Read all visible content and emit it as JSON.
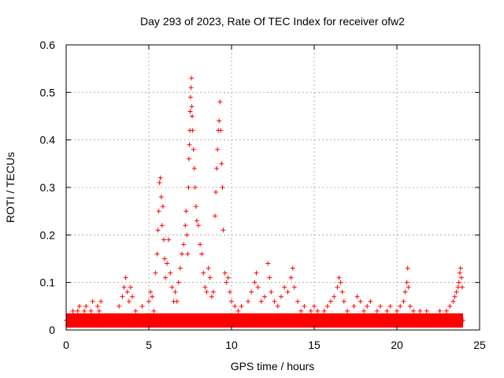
{
  "chart_data": {
    "type": "scatter",
    "title": "Day 293 of 2023, Rate Of TEC Index for receiver ofw2",
    "xlabel": "GPS time / hours",
    "ylabel": "ROTI / TECUs",
    "xlim": [
      0,
      25
    ],
    "ylim": [
      0,
      0.6
    ],
    "x_ticks": [
      {
        "value": 0,
        "label": "0"
      },
      {
        "value": 5,
        "label": "5"
      },
      {
        "value": 10,
        "label": "10"
      },
      {
        "value": 15,
        "label": "15"
      },
      {
        "value": 20,
        "label": "20"
      },
      {
        "value": 25,
        "label": "25"
      }
    ],
    "y_ticks": [
      {
        "value": 0,
        "label": "0"
      },
      {
        "value": 0.1,
        "label": "0.1"
      },
      {
        "value": 0.2,
        "label": "0.2"
      },
      {
        "value": 0.3,
        "label": "0.3"
      },
      {
        "value": 0.4,
        "label": "0.4"
      },
      {
        "value": 0.5,
        "label": "0.5"
      },
      {
        "value": 0.6,
        "label": "0.6"
      }
    ],
    "grid": true,
    "marker": "plus",
    "color": "#ff0000",
    "series": [
      {
        "name": "ROTI",
        "points": [
          [
            0.0,
            0.02
          ],
          [
            0.1,
            0.01
          ],
          [
            0.2,
            0.03
          ],
          [
            0.3,
            0.02
          ],
          [
            0.4,
            0.04
          ],
          [
            0.5,
            0.03
          ],
          [
            0.6,
            0.02
          ],
          [
            0.7,
            0.04
          ],
          [
            0.8,
            0.05
          ],
          [
            0.9,
            0.03
          ],
          [
            1.0,
            0.02
          ],
          [
            1.1,
            0.04
          ],
          [
            1.2,
            0.05
          ],
          [
            1.3,
            0.03
          ],
          [
            1.4,
            0.02
          ],
          [
            1.5,
            0.04
          ],
          [
            1.6,
            0.06
          ],
          [
            1.7,
            0.03
          ],
          [
            1.8,
            0.02
          ],
          [
            1.9,
            0.05
          ],
          [
            2.0,
            0.04
          ],
          [
            2.1,
            0.06
          ],
          [
            2.2,
            0.03
          ],
          [
            2.4,
            0.02
          ],
          [
            2.6,
            0.03
          ],
          [
            2.8,
            0.02
          ],
          [
            3.0,
            0.03
          ],
          [
            3.2,
            0.05
          ],
          [
            3.4,
            0.07
          ],
          [
            3.5,
            0.09
          ],
          [
            3.6,
            0.11
          ],
          [
            3.7,
            0.08
          ],
          [
            3.8,
            0.06
          ],
          [
            3.9,
            0.09
          ],
          [
            4.0,
            0.07
          ],
          [
            4.2,
            0.04
          ],
          [
            4.4,
            0.03
          ],
          [
            4.6,
            0.05
          ],
          [
            4.8,
            0.03
          ],
          [
            5.0,
            0.06
          ],
          [
            5.1,
            0.08
          ],
          [
            5.2,
            0.07
          ],
          [
            5.3,
            0.04
          ],
          [
            5.4,
            0.12
          ],
          [
            5.5,
            0.16
          ],
          [
            5.55,
            0.21
          ],
          [
            5.6,
            0.25
          ],
          [
            5.65,
            0.31
          ],
          [
            5.7,
            0.32
          ],
          [
            5.75,
            0.28
          ],
          [
            5.8,
            0.22
          ],
          [
            5.85,
            0.26
          ],
          [
            5.9,
            0.19
          ],
          [
            5.95,
            0.15
          ],
          [
            6.0,
            0.11
          ],
          [
            6.1,
            0.14
          ],
          [
            6.2,
            0.19
          ],
          [
            6.3,
            0.12
          ],
          [
            6.4,
            0.09
          ],
          [
            6.5,
            0.06
          ],
          [
            6.6,
            0.08
          ],
          [
            6.7,
            0.06
          ],
          [
            6.8,
            0.1
          ],
          [
            6.9,
            0.13
          ],
          [
            7.0,
            0.16
          ],
          [
            7.1,
            0.18
          ],
          [
            7.2,
            0.22
          ],
          [
            7.25,
            0.25
          ],
          [
            7.3,
            0.2
          ],
          [
            7.35,
            0.16
          ],
          [
            7.4,
            0.3
          ],
          [
            7.42,
            0.36
          ],
          [
            7.45,
            0.39
          ],
          [
            7.48,
            0.42
          ],
          [
            7.5,
            0.46
          ],
          [
            7.52,
            0.49
          ],
          [
            7.55,
            0.51
          ],
          [
            7.58,
            0.53
          ],
          [
            7.6,
            0.47
          ],
          [
            7.62,
            0.45
          ],
          [
            7.65,
            0.42
          ],
          [
            7.7,
            0.38
          ],
          [
            7.75,
            0.34
          ],
          [
            7.8,
            0.3
          ],
          [
            7.85,
            0.26
          ],
          [
            7.9,
            0.23
          ],
          [
            8.0,
            0.22
          ],
          [
            8.1,
            0.18
          ],
          [
            8.2,
            0.16
          ],
          [
            8.3,
            0.12
          ],
          [
            8.4,
            0.09
          ],
          [
            8.5,
            0.08
          ],
          [
            8.6,
            0.13
          ],
          [
            8.7,
            0.11
          ],
          [
            8.8,
            0.07
          ],
          [
            8.9,
            0.08
          ],
          [
            9.0,
            0.24
          ],
          [
            9.05,
            0.29
          ],
          [
            9.1,
            0.34
          ],
          [
            9.15,
            0.38
          ],
          [
            9.2,
            0.42
          ],
          [
            9.25,
            0.44
          ],
          [
            9.3,
            0.48
          ],
          [
            9.35,
            0.42
          ],
          [
            9.4,
            0.35
          ],
          [
            9.45,
            0.3
          ],
          [
            9.5,
            0.21
          ],
          [
            9.6,
            0.12
          ],
          [
            9.7,
            0.1
          ],
          [
            9.8,
            0.11
          ],
          [
            9.9,
            0.08
          ],
          [
            10.0,
            0.06
          ],
          [
            10.2,
            0.05
          ],
          [
            10.4,
            0.04
          ],
          [
            10.6,
            0.05
          ],
          [
            10.8,
            0.03
          ],
          [
            11.0,
            0.06
          ],
          [
            11.2,
            0.08
          ],
          [
            11.4,
            0.1
          ],
          [
            11.5,
            0.12
          ],
          [
            11.6,
            0.09
          ],
          [
            11.8,
            0.06
          ],
          [
            12.0,
            0.07
          ],
          [
            12.2,
            0.14
          ],
          [
            12.3,
            0.11
          ],
          [
            12.4,
            0.08
          ],
          [
            12.6,
            0.06
          ],
          [
            12.8,
            0.05
          ],
          [
            13.0,
            0.07
          ],
          [
            13.2,
            0.09
          ],
          [
            13.4,
            0.08
          ],
          [
            13.6,
            0.11
          ],
          [
            13.7,
            0.13
          ],
          [
            13.8,
            0.09
          ],
          [
            14.0,
            0.06
          ],
          [
            14.2,
            0.04
          ],
          [
            14.4,
            0.05
          ],
          [
            14.6,
            0.03
          ],
          [
            14.8,
            0.04
          ],
          [
            15.0,
            0.05
          ],
          [
            15.2,
            0.04
          ],
          [
            15.4,
            0.03
          ],
          [
            15.6,
            0.04
          ],
          [
            15.8,
            0.05
          ],
          [
            16.0,
            0.06
          ],
          [
            16.2,
            0.07
          ],
          [
            16.4,
            0.09
          ],
          [
            16.5,
            0.11
          ],
          [
            16.6,
            0.1
          ],
          [
            16.7,
            0.08
          ],
          [
            16.8,
            0.06
          ],
          [
            17.0,
            0.04
          ],
          [
            17.2,
            0.03
          ],
          [
            17.4,
            0.05
          ],
          [
            17.6,
            0.07
          ],
          [
            17.8,
            0.06
          ],
          [
            18.0,
            0.04
          ],
          [
            18.2,
            0.05
          ],
          [
            18.4,
            0.06
          ],
          [
            18.6,
            0.03
          ],
          [
            18.8,
            0.04
          ],
          [
            19.0,
            0.05
          ],
          [
            19.2,
            0.03
          ],
          [
            19.4,
            0.04
          ],
          [
            19.6,
            0.05
          ],
          [
            19.8,
            0.03
          ],
          [
            20.0,
            0.04
          ],
          [
            20.2,
            0.05
          ],
          [
            20.4,
            0.06
          ],
          [
            20.5,
            0.08
          ],
          [
            20.6,
            0.1
          ],
          [
            20.65,
            0.13
          ],
          [
            20.7,
            0.09
          ],
          [
            20.8,
            0.05
          ],
          [
            21.0,
            0.04
          ],
          [
            21.2,
            0.03
          ],
          [
            21.4,
            0.04
          ],
          [
            21.6,
            0.03
          ],
          [
            21.8,
            0.04
          ],
          [
            22.0,
            0.03
          ],
          [
            22.2,
            0.02
          ],
          [
            22.4,
            0.03
          ],
          [
            22.6,
            0.04
          ],
          [
            22.8,
            0.03
          ],
          [
            23.0,
            0.04
          ],
          [
            23.2,
            0.05
          ],
          [
            23.4,
            0.06
          ],
          [
            23.5,
            0.07
          ],
          [
            23.6,
            0.08
          ],
          [
            23.7,
            0.09
          ],
          [
            23.75,
            0.1
          ],
          [
            23.8,
            0.12
          ],
          [
            23.85,
            0.13
          ],
          [
            23.9,
            0.11
          ],
          [
            23.95,
            0.09
          ],
          [
            24.0,
            0.02
          ]
        ]
      }
    ]
  }
}
